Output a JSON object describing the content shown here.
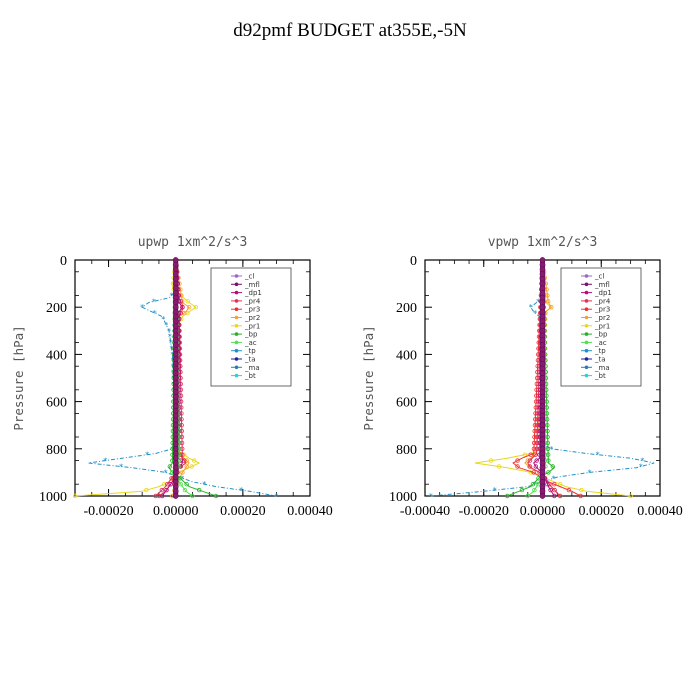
{
  "title": "d92pmf  BUDGET at355E,-5N",
  "legend_labels": [
    "_cl",
    "_mfl",
    "_dp1",
    "_pr4",
    "_pr3",
    "_pr2",
    "_pr1",
    "_bp",
    "_ac",
    "_tp",
    "_ta",
    "_ma",
    "_bt"
  ],
  "legend_colors": [
    "#9966cc",
    "#7a1070",
    "#b0107a",
    "#e0305a",
    "#f03030",
    "#f5a030",
    "#e8d820",
    "#28b028",
    "#50e050",
    "#2090c8",
    "#2020a0",
    "#2a80b0",
    "#30d0d0"
  ],
  "chart_data": [
    {
      "type": "line",
      "title": "upwp   1xm^2/s^3",
      "ylabel": "Pressure [hPa]",
      "xlim": [
        -0.0003,
        0.0004
      ],
      "ylim": [
        1000,
        0
      ],
      "xticks": [
        "-0.00020",
        "0.00000",
        "0.00020",
        "0.00040"
      ],
      "xtick_values": [
        -0.0002,
        0.0,
        0.0002,
        0.0004
      ],
      "yticks": [
        "0",
        "200",
        "400",
        "600",
        "800",
        "1000"
      ],
      "ytick_values": [
        0,
        200,
        400,
        600,
        800,
        1000
      ],
      "grid": false,
      "legend_position": "top-right",
      "series": [
        {
          "name": "_tp",
          "p": [
            0,
            100,
            120,
            160,
            180,
            200,
            220,
            240,
            300,
            400,
            780,
            800,
            820,
            840,
            860,
            880,
            900,
            940,
            960,
            980,
            1000
          ],
          "x": [
            0,
            0,
            1e-05,
            -2e-05,
            -8e-05,
            -0.0001,
            -7e-05,
            -4e-05,
            -2e-05,
            -1e-05,
            0,
            -1e-05,
            -6e-05,
            -0.00016,
            -0.00026,
            -0.00013,
            -3e-05,
            5e-05,
            0.00012,
            0.00022,
            0.0003
          ]
        },
        {
          "name": "_pr1",
          "p": [
            0,
            120,
            180,
            200,
            220,
            240,
            300,
            800,
            840,
            860,
            880,
            900,
            940,
            960,
            980,
            1000
          ],
          "x": [
            0,
            -1e-05,
            4e-05,
            6e-05,
            4e-05,
            2e-05,
            0,
            0,
            4e-05,
            7e-05,
            4e-05,
            1e-05,
            -2e-05,
            -5e-05,
            -0.0001,
            -0.0003
          ]
        },
        {
          "name": "_pr2",
          "p": [
            0,
            180,
            200,
            220,
            240,
            820,
            860,
            900,
            960,
            1000
          ],
          "x": [
            0,
            2e-05,
            4e-05,
            3e-05,
            1e-05,
            1e-05,
            4e-05,
            2e-05,
            0,
            -1e-05
          ]
        },
        {
          "name": "_pr3",
          "p": [
            0,
            160,
            190,
            210,
            240,
            800,
            840,
            860,
            880,
            900,
            940,
            980,
            1000
          ],
          "x": [
            0,
            1e-05,
            2e-05,
            2e-05,
            1e-05,
            0,
            2e-05,
            3e-05,
            1e-05,
            0,
            -1e-05,
            -3e-05,
            -5e-05
          ]
        },
        {
          "name": "_pr4",
          "p": [
            0,
            180,
            200,
            220,
            840,
            860,
            880,
            900,
            960,
            1000
          ],
          "x": [
            0,
            1e-05,
            2e-05,
            1e-05,
            2e-05,
            3e-05,
            1e-05,
            0,
            -3e-05,
            -6e-05
          ]
        },
        {
          "name": "_dp1",
          "p": [
            0,
            180,
            200,
            220,
            840,
            860,
            880,
            920,
            960,
            1000
          ],
          "x": [
            0,
            1e-05,
            2e-05,
            1e-05,
            1e-05,
            2e-05,
            1e-05,
            0,
            -2e-05,
            -4e-05
          ]
        },
        {
          "name": "_bp",
          "p": [
            0,
            860,
            880,
            900,
            920,
            960,
            980,
            1000
          ],
          "x": [
            0,
            -1e-05,
            -2e-05,
            -1e-05,
            1e-05,
            4e-05,
            8e-05,
            0.00012
          ]
        },
        {
          "name": "_ac",
          "p": [
            0,
            880,
            900,
            940,
            980,
            1000
          ],
          "x": [
            0,
            1e-05,
            -1e-05,
            1e-05,
            3e-05,
            5e-05
          ]
        },
        {
          "name": "_mfl",
          "p": [
            0,
            1000
          ],
          "x": [
            0,
            0
          ]
        }
      ]
    },
    {
      "type": "line",
      "title": "vpwp   1xm^2/s^3",
      "ylabel": "Pressure [hPa]",
      "xlim": [
        -0.0004,
        0.0004
      ],
      "ylim": [
        1000,
        0
      ],
      "xticks": [
        "-0.00040",
        "-0.00020",
        "0.00000",
        "0.00020",
        "0.00040"
      ],
      "xtick_values": [
        -0.0004,
        -0.0002,
        0.0,
        0.0002,
        0.0004
      ],
      "yticks": [
        "0",
        "200",
        "400",
        "600",
        "800",
        "1000"
      ],
      "ytick_values": [
        0,
        200,
        400,
        600,
        800,
        1000
      ],
      "grid": false,
      "legend_position": "top-right",
      "series": [
        {
          "name": "_tp",
          "p": [
            0,
            160,
            180,
            200,
            220,
            240,
            300,
            780,
            800,
            820,
            840,
            860,
            880,
            900,
            920,
            960,
            980,
            1000
          ],
          "x": [
            0,
            0,
            -2e-05,
            -4e-05,
            -3e-05,
            -1e-05,
            0,
            0,
            3e-05,
            0.00015,
            0.0003,
            0.00038,
            0.00032,
            0.00016,
            5e-05,
            -5e-05,
            -0.0002,
            -0.00038
          ]
        },
        {
          "name": "_pr1",
          "p": [
            0,
            180,
            200,
            220,
            800,
            820,
            840,
            860,
            880,
            900,
            940,
            960,
            980,
            1000
          ],
          "x": [
            0,
            1e-05,
            3e-05,
            1e-05,
            0,
            -4e-05,
            -0.00012,
            -0.00023,
            -0.00012,
            -4e-05,
            4e-05,
            8e-05,
            0.00015,
            0.0003
          ]
        },
        {
          "name": "_pr2",
          "p": [
            0,
            180,
            200,
            220,
            820,
            860,
            880,
            900,
            960,
            1000
          ],
          "x": [
            0,
            2e-05,
            3e-05,
            1e-05,
            -2e-05,
            -6e-05,
            -4e-05,
            -1e-05,
            3e-05,
            6e-05
          ]
        },
        {
          "name": "_pr3",
          "p": [
            0,
            820,
            840,
            860,
            880,
            900,
            940,
            960,
            980,
            1000
          ],
          "x": [
            0,
            -3e-05,
            -7e-05,
            -0.0001,
            -8e-05,
            -3e-05,
            2e-05,
            6e-05,
            0.0001,
            0.00013
          ]
        },
        {
          "name": "_pr4",
          "p": [
            0,
            820,
            860,
            880,
            900,
            960,
            1000
          ],
          "x": [
            0,
            -2e-05,
            -5e-05,
            -4e-05,
            -1e-05,
            3e-05,
            6e-05
          ]
        },
        {
          "name": "_dp1",
          "p": [
            0,
            840,
            860,
            880,
            900,
            960,
            1000
          ],
          "x": [
            0,
            -1e-05,
            -3e-05,
            -2e-05,
            0,
            2e-05,
            4e-05
          ]
        },
        {
          "name": "_bp",
          "p": [
            0,
            860,
            880,
            900,
            920,
            960,
            980,
            1000
          ],
          "x": [
            0,
            2e-05,
            4e-05,
            2e-05,
            -1e-05,
            -4e-05,
            -8e-05,
            -0.00012
          ]
        },
        {
          "name": "_ac",
          "p": [
            0,
            880,
            900,
            940,
            980,
            1000
          ],
          "x": [
            0,
            1e-05,
            0,
            -1e-05,
            -3e-05,
            -5e-05
          ]
        },
        {
          "name": "_mfl",
          "p": [
            0,
            1000
          ],
          "x": [
            0,
            0
          ]
        }
      ]
    }
  ]
}
